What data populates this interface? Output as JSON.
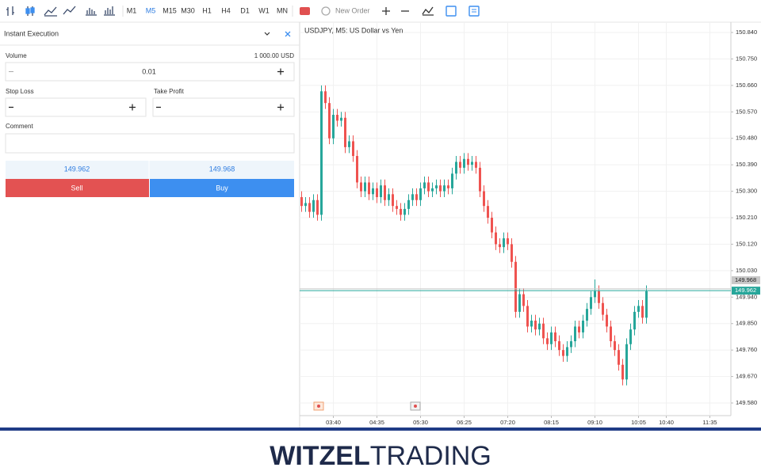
{
  "toolbar": {
    "timeframes": [
      "M1",
      "M5",
      "M15",
      "M30",
      "H1",
      "H4",
      "D1",
      "W1",
      "MN"
    ],
    "active_timeframe": 1,
    "new_order": "New Order"
  },
  "order_panel": {
    "title": "Instant Execution",
    "volume_label": "Volume",
    "volume_amount": "1 000.00 USD",
    "volume": "0.01",
    "stop_loss_label": "Stop Loss",
    "take_profit_label": "Take Profit",
    "comment_label": "Comment",
    "bid": "149.962",
    "ask": "149.968",
    "sell": "Sell",
    "buy": "Buy"
  },
  "chart_data": {
    "type": "candlestick",
    "title": "USDJPY, M5: US Dollar vs Yen",
    "up_color": "#26a69a",
    "down_color": "#ef5350",
    "grid": true,
    "open": [
      150.28,
      150.25,
      150.26,
      150.23,
      150.27,
      150.22,
      150.64,
      150.6,
      150.48,
      150.56,
      150.54,
      150.55,
      150.45,
      150.47,
      150.42,
      150.33,
      150.3,
      150.33,
      150.29,
      150.31,
      150.28,
      150.32,
      150.27,
      150.29,
      150.25,
      150.24,
      150.22,
      150.24,
      150.27,
      150.29,
      150.27,
      150.31,
      150.33,
      150.3,
      150.31,
      150.32,
      150.3,
      150.32,
      150.31,
      150.36,
      150.4,
      150.38,
      150.41,
      150.39,
      150.4,
      150.38,
      150.3,
      150.25,
      150.21,
      150.16,
      150.12,
      150.11,
      150.14,
      150.12,
      150.06,
      149.89,
      149.95,
      149.91,
      149.84,
      149.86,
      149.83,
      149.85,
      149.8,
      149.78,
      149.82,
      149.79,
      149.76,
      149.74,
      149.77,
      149.79,
      149.84,
      149.82,
      149.86,
      149.9,
      149.94,
      149.96,
      149.92,
      149.88,
      149.84,
      149.79,
      149.76,
      149.71,
      149.66,
      149.78,
      149.83,
      149.89,
      149.91,
      149.87
    ],
    "high": [
      150.3,
      150.28,
      150.28,
      150.29,
      150.29,
      150.66,
      150.66,
      150.62,
      150.58,
      150.58,
      150.57,
      150.57,
      150.49,
      150.49,
      150.44,
      150.35,
      150.35,
      150.35,
      150.33,
      150.33,
      150.34,
      150.34,
      150.31,
      150.31,
      150.27,
      150.26,
      150.26,
      150.29,
      150.31,
      150.31,
      150.33,
      150.35,
      150.35,
      150.33,
      150.34,
      150.34,
      150.34,
      150.34,
      150.38,
      150.42,
      150.42,
      150.43,
      150.43,
      150.42,
      150.42,
      150.4,
      150.32,
      150.27,
      150.23,
      150.18,
      150.14,
      150.16,
      150.16,
      150.14,
      150.08,
      149.97,
      149.97,
      149.93,
      149.88,
      149.88,
      149.87,
      149.87,
      149.82,
      149.84,
      149.84,
      149.81,
      149.78,
      149.79,
      149.81,
      149.86,
      149.86,
      149.88,
      149.92,
      149.96,
      150.0,
      149.98,
      149.94,
      149.9,
      149.86,
      149.81,
      149.78,
      149.73,
      149.8,
      149.85,
      149.91,
      149.93,
      149.93,
      149.98
    ],
    "low": [
      150.23,
      150.23,
      150.21,
      150.21,
      150.2,
      150.2,
      150.58,
      150.46,
      150.46,
      150.52,
      150.52,
      150.43,
      150.43,
      150.4,
      150.31,
      150.28,
      150.28,
      150.27,
      150.27,
      150.26,
      150.26,
      150.25,
      150.25,
      150.23,
      150.22,
      150.2,
      150.2,
      150.22,
      150.25,
      150.25,
      150.25,
      150.29,
      150.28,
      150.28,
      150.29,
      150.28,
      150.28,
      150.29,
      150.29,
      150.34,
      150.36,
      150.36,
      150.37,
      150.37,
      150.36,
      150.28,
      150.23,
      150.19,
      150.14,
      150.1,
      150.09,
      150.09,
      150.1,
      150.04,
      149.87,
      149.87,
      149.89,
      149.82,
      149.82,
      149.81,
      149.81,
      149.78,
      149.76,
      149.76,
      149.77,
      149.74,
      149.72,
      149.72,
      149.75,
      149.77,
      149.8,
      149.8,
      149.84,
      149.88,
      149.92,
      149.9,
      149.86,
      149.82,
      149.77,
      149.74,
      149.69,
      149.64,
      149.64,
      149.76,
      149.81,
      149.87,
      149.85,
      149.85
    ],
    "close": [
      150.25,
      150.26,
      150.23,
      150.27,
      150.22,
      150.64,
      150.6,
      150.48,
      150.56,
      150.54,
      150.55,
      150.45,
      150.47,
      150.42,
      150.33,
      150.3,
      150.33,
      150.29,
      150.31,
      150.28,
      150.32,
      150.27,
      150.29,
      150.25,
      150.24,
      150.22,
      150.24,
      150.27,
      150.29,
      150.27,
      150.31,
      150.33,
      150.3,
      150.31,
      150.32,
      150.3,
      150.32,
      150.31,
      150.36,
      150.4,
      150.38,
      150.41,
      150.39,
      150.4,
      150.38,
      150.3,
      150.25,
      150.21,
      150.16,
      150.12,
      150.11,
      150.14,
      150.12,
      150.06,
      149.89,
      149.95,
      149.91,
      149.84,
      149.86,
      149.83,
      149.85,
      149.8,
      149.78,
      149.82,
      149.79,
      149.76,
      149.74,
      149.77,
      149.79,
      149.84,
      149.82,
      149.86,
      149.9,
      149.94,
      149.96,
      149.92,
      149.88,
      149.84,
      149.79,
      149.76,
      149.71,
      149.66,
      149.78,
      149.83,
      149.89,
      149.91,
      149.87,
      149.96
    ],
    "xlim": [
      -0.5,
      108.3
    ],
    "xticks": [
      {
        "value": 8,
        "label": "03:40"
      },
      {
        "value": 19,
        "label": "04:35"
      },
      {
        "value": 30,
        "label": "05:30"
      },
      {
        "value": 41,
        "label": "06:25"
      },
      {
        "value": 52,
        "label": "07:20"
      },
      {
        "value": 63,
        "label": "08:15"
      },
      {
        "value": 74,
        "label": "09:10"
      },
      {
        "value": 85,
        "label": "10:05"
      },
      {
        "value": 92,
        "label": "10:40"
      },
      {
        "value": 103,
        "label": "11:35"
      }
    ],
    "ylim": [
      149.537,
      150.867
    ],
    "yticks": [
      {
        "value": 150.84,
        "label": "150.840"
      },
      {
        "value": 150.75,
        "label": "150.750"
      },
      {
        "value": 150.66,
        "label": "150.660"
      },
      {
        "value": 150.57,
        "label": "150.570"
      },
      {
        "value": 150.48,
        "label": "150.480"
      },
      {
        "value": 150.39,
        "label": "150.390"
      },
      {
        "value": 150.3,
        "label": "150.300"
      },
      {
        "value": 150.21,
        "label": "150.210"
      },
      {
        "value": 150.12,
        "label": "150.120"
      },
      {
        "value": 150.03,
        "label": "150.030"
      },
      {
        "value": 149.94,
        "label": "149.940"
      },
      {
        "value": 149.85,
        "label": "149.850"
      },
      {
        "value": 149.76,
        "label": "149.760"
      },
      {
        "value": 149.67,
        "label": "149.670"
      },
      {
        "value": 149.58,
        "label": "149.580"
      }
    ],
    "price_lines": [
      {
        "value": 149.962,
        "label": "149.962",
        "color": "#26a69a"
      },
      {
        "value": 149.968,
        "label": "149.968",
        "color": "#c8c8c8"
      }
    ]
  },
  "footer": {
    "brand_bold": "WITZEL",
    "brand_light": "TRADING"
  }
}
